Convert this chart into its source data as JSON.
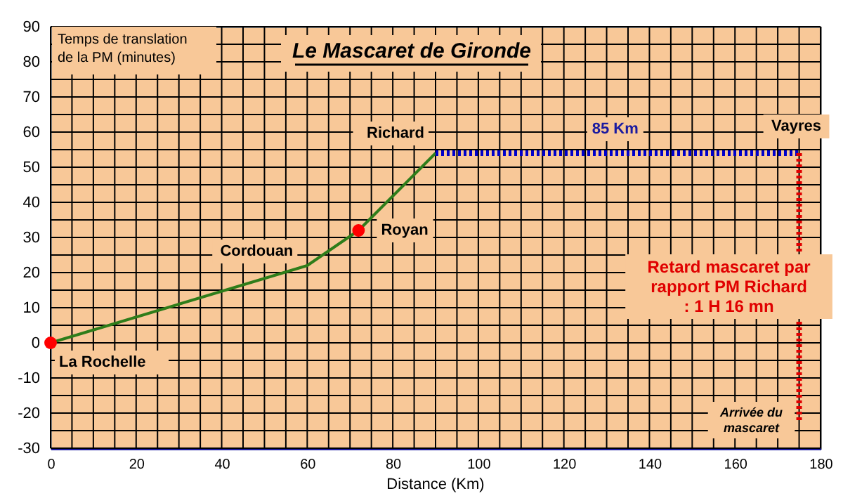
{
  "chart_data": {
    "type": "line",
    "title": "Le Mascaret de Gironde",
    "xlabel": "Distance (Km)",
    "ylabel": "Temps de translation\nde la PM (minutes)",
    "series": [
      {
        "type": "line",
        "color": "#2e7d1a",
        "x": [
          0,
          60,
          72,
          90
        ],
        "values": [
          0,
          22,
          32,
          54
        ],
        "line_style": "solid"
      },
      {
        "type": "scatter",
        "color": "#ff0000",
        "x": [
          0,
          72
        ],
        "values": [
          0,
          32
        ],
        "marker": "circle"
      },
      {
        "type": "line",
        "color": "#0000cc",
        "x": [
          90,
          175
        ],
        "values": [
          54,
          54
        ],
        "line_style": "dotted"
      },
      {
        "type": "line",
        "color": "#e00000",
        "x": [
          175,
          175
        ],
        "values": [
          54,
          -22
        ],
        "line_style": "dotted"
      }
    ],
    "annotations": [
      {
        "text": "La Rochelle",
        "x": 0,
        "y": 0
      },
      {
        "text": "Cordouan",
        "x": 60,
        "y": 22
      },
      {
        "text": "Royan",
        "x": 72,
        "y": 32
      },
      {
        "text": "Richard",
        "x": 90,
        "y": 54
      },
      {
        "text": "85 Km",
        "x": 132,
        "y": 54
      },
      {
        "text": "Vayres",
        "x": 175,
        "y": 54
      },
      {
        "text": "Retard mascaret par\nrapport PM Richard\n: 1 H 16 mn",
        "x": 175,
        "y": 16
      },
      {
        "text": "Arrivée du\nmascaret",
        "x": 175,
        "y": -22
      }
    ],
    "xlim": [
      0,
      180
    ],
    "ylim": [
      -30,
      90
    ],
    "xticks": [
      0,
      {
        "value": 5,
        "label": null
      },
      {
        "value": 10,
        "label": null
      },
      {
        "value": 15,
        "label": null
      },
      20,
      {
        "value": 25,
        "label": null
      },
      {
        "value": 30,
        "label": null
      },
      {
        "value": 35,
        "label": null
      },
      40,
      {
        "value": 45,
        "label": null
      },
      {
        "value": 50,
        "label": null
      },
      {
        "value": 55,
        "label": null
      },
      60,
      {
        "value": 65,
        "label": null
      },
      {
        "value": 70,
        "label": null
      },
      {
        "value": 75,
        "label": null
      },
      80,
      {
        "value": 85,
        "label": null
      },
      {
        "value": 90,
        "label": null
      },
      {
        "value": 95,
        "label": null
      },
      100,
      {
        "value": 105,
        "label": null
      },
      {
        "value": 110,
        "label": null
      },
      {
        "value": 115,
        "label": null
      },
      120,
      {
        "value": 125,
        "label": null
      },
      {
        "value": 130,
        "label": null
      },
      {
        "value": 135,
        "label": null
      },
      140,
      {
        "value": 145,
        "label": null
      },
      {
        "value": 150,
        "label": null
      },
      {
        "value": 155,
        "label": null
      },
      160,
      {
        "value": 165,
        "label": null
      },
      {
        "value": 170,
        "label": null
      },
      {
        "value": 175,
        "label": null
      },
      180
    ],
    "yticks": [
      -30,
      {
        "value": -25,
        "label": null
      },
      -20,
      {
        "value": -15,
        "label": null
      },
      -10,
      {
        "value": -5,
        "label": null
      },
      0,
      {
        "value": 5,
        "label": null
      },
      10,
      {
        "value": 15,
        "label": null
      },
      20,
      {
        "value": 25,
        "label": null
      },
      30,
      {
        "value": 35,
        "label": null
      },
      40,
      {
        "value": 45,
        "label": null
      },
      50,
      {
        "value": 55,
        "label": null
      },
      60,
      {
        "value": 65,
        "label": null
      },
      70,
      {
        "value": 75,
        "label": null
      },
      80,
      {
        "value": 85,
        "label": null
      },
      90
    ],
    "grid": true
  }
}
